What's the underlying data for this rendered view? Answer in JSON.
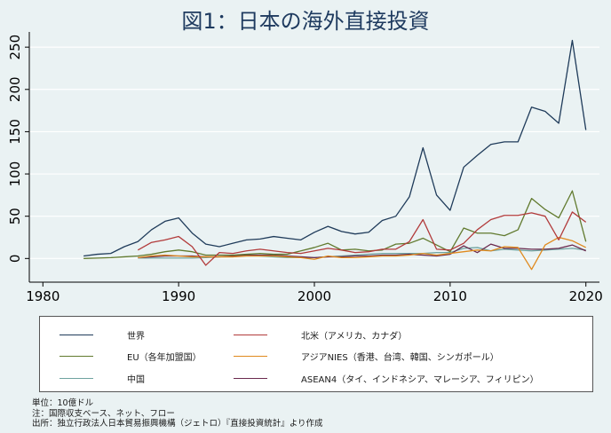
{
  "title": "図1：日本の海外直接投資",
  "chart_data": {
    "type": "line",
    "x_ticks": [
      1980,
      1990,
      2000,
      2010,
      2020
    ],
    "y_ticks": [
      0,
      50,
      100,
      150,
      200,
      250
    ],
    "xlim": [
      1979,
      2021
    ],
    "ylim": [
      -28,
      268
    ],
    "grid": "horizontal",
    "legend_position": "bottom",
    "series": [
      {
        "name": "世界",
        "color": "#1f3b5a",
        "x": [
          1983,
          1984,
          1985,
          1986,
          1987,
          1988,
          1989,
          1990,
          1991,
          1992,
          1993,
          1994,
          1995,
          1996,
          1997,
          1998,
          1999,
          2000,
          2001,
          2002,
          2003,
          2004,
          2005,
          2006,
          2007,
          2008,
          2009,
          2010,
          2011,
          2012,
          2013,
          2014,
          2015,
          2016,
          2017,
          2018,
          2019,
          2020
        ],
        "y": [
          3,
          5,
          6,
          14,
          20,
          34,
          44,
          48,
          30,
          17,
          14,
          18,
          22,
          23,
          26,
          24,
          22,
          31,
          38,
          32,
          29,
          31,
          45,
          50,
          73,
          131,
          75,
          57,
          108,
          122,
          135,
          138,
          138,
          179,
          174,
          160,
          258,
          152
        ]
      },
      {
        "name": "北米（アメリカ、カナダ）",
        "color": "#b23b3b",
        "x": [
          1987,
          1988,
          1989,
          1990,
          1991,
          1992,
          1993,
          1994,
          1995,
          1996,
          1997,
          1998,
          1999,
          2000,
          2001,
          2002,
          2003,
          2004,
          2005,
          2006,
          2007,
          2008,
          2009,
          2010,
          2011,
          2012,
          2013,
          2014,
          2015,
          2016,
          2017,
          2018,
          2019,
          2020
        ],
        "y": [
          10,
          19,
          22,
          26,
          14,
          -8,
          7,
          6,
          9,
          11,
          9,
          7,
          6,
          9,
          12,
          10,
          7,
          8,
          11,
          11,
          20,
          46,
          11,
          10,
          18,
          34,
          46,
          51,
          51,
          54,
          50,
          22,
          55,
          43
        ]
      },
      {
        "name": "EU（各年加盟国）",
        "color": "#617a2e",
        "x": [
          1983,
          1984,
          1985,
          1986,
          1987,
          1988,
          1989,
          1990,
          1991,
          1992,
          1993,
          1994,
          1995,
          1996,
          1997,
          1998,
          1999,
          2000,
          2001,
          2002,
          2003,
          2004,
          2005,
          2006,
          2007,
          2008,
          2009,
          2010,
          2011,
          2012,
          2013,
          2014,
          2015,
          2016,
          2017,
          2018,
          2019,
          2020
        ],
        "y": [
          0,
          0.5,
          1,
          2,
          3,
          5,
          8,
          10,
          8,
          4,
          4,
          4,
          5,
          6,
          5,
          5,
          9,
          13,
          18,
          10,
          11,
          9,
          10,
          17,
          18,
          24,
          16,
          8,
          36,
          30,
          30,
          27,
          34,
          71,
          58,
          48,
          80,
          20
        ]
      },
      {
        "name": "アジアNIES（香港、台湾、韓国、シンガポール）",
        "color": "#e08a1e",
        "x": [
          1987,
          1988,
          1989,
          1990,
          1991,
          1992,
          1993,
          1994,
          1995,
          1996,
          1997,
          1998,
          1999,
          2000,
          2001,
          2002,
          2003,
          2004,
          2005,
          2006,
          2007,
          2008,
          2009,
          2010,
          2011,
          2012,
          2013,
          2014,
          2015,
          2016,
          2017,
          2018,
          2019,
          2020
        ],
        "y": [
          1,
          3,
          4,
          3,
          2,
          2,
          2,
          2,
          3,
          3,
          3,
          2,
          1,
          -1,
          3,
          1,
          1,
          2,
          3,
          3,
          4,
          6,
          4,
          6,
          8,
          10,
          9,
          14,
          13,
          -13,
          16,
          25,
          21,
          13
        ]
      },
      {
        "name": "中国",
        "color": "#6fa3a0",
        "x": [
          1987,
          1988,
          1989,
          1990,
          1991,
          1992,
          1993,
          1994,
          1995,
          1996,
          1997,
          1998,
          1999,
          2000,
          2001,
          2002,
          2003,
          2004,
          2005,
          2006,
          2007,
          2008,
          2009,
          2010,
          2011,
          2012,
          2013,
          2014,
          2015,
          2016,
          2017,
          2018,
          2019,
          2020
        ],
        "y": [
          0.5,
          0.5,
          0.5,
          0.5,
          0.5,
          1,
          2,
          2,
          4,
          3,
          2,
          1,
          1,
          1,
          2,
          3,
          4,
          5,
          6,
          6,
          6,
          6,
          7,
          7,
          12,
          13,
          9,
          11,
          10,
          9,
          10,
          11,
          12,
          10
        ]
      },
      {
        "name": "ASEAN4（タイ、インドネシア、マレーシア、フィリピン）",
        "color": "#6a2a4e",
        "x": [
          1987,
          1988,
          1989,
          1990,
          1991,
          1992,
          1993,
          1994,
          1995,
          1996,
          1997,
          1998,
          1999,
          2000,
          2001,
          2002,
          2003,
          2004,
          2005,
          2006,
          2007,
          2008,
          2009,
          2010,
          2011,
          2012,
          2013,
          2014,
          2015,
          2016,
          2017,
          2018,
          2019,
          2020
        ],
        "y": [
          1,
          2,
          3,
          3,
          3,
          2,
          2,
          3,
          4,
          4,
          4,
          3,
          2,
          1,
          2,
          2,
          3,
          3,
          4,
          4,
          5,
          4,
          3,
          5,
          15,
          7,
          17,
          12,
          12,
          11,
          11,
          12,
          16,
          9
        ]
      }
    ]
  },
  "legend": {
    "items": [
      {
        "label": "世界",
        "color": "#1f3b5a"
      },
      {
        "label": "北米（アメリカ、カナダ）",
        "color": "#b23b3b"
      },
      {
        "label": "EU（各年加盟国）",
        "color": "#617a2e"
      },
      {
        "label": "アジアNIES（香港、台湾、韓国、シンガポール）",
        "color": "#e08a1e"
      },
      {
        "label": "中国",
        "color": "#6fa3a0"
      },
      {
        "label": "ASEAN4（タイ、インドネシア、マレーシア、フィリピン）",
        "color": "#6a2a4e"
      }
    ]
  },
  "notes": {
    "unit": "単位：10億ドル",
    "note": "注：国際収支ベース、ネット、フロー",
    "source": "出所：独立行政法人日本貿易振興機構（ジェトロ）『直接投資統計』より作成"
  }
}
